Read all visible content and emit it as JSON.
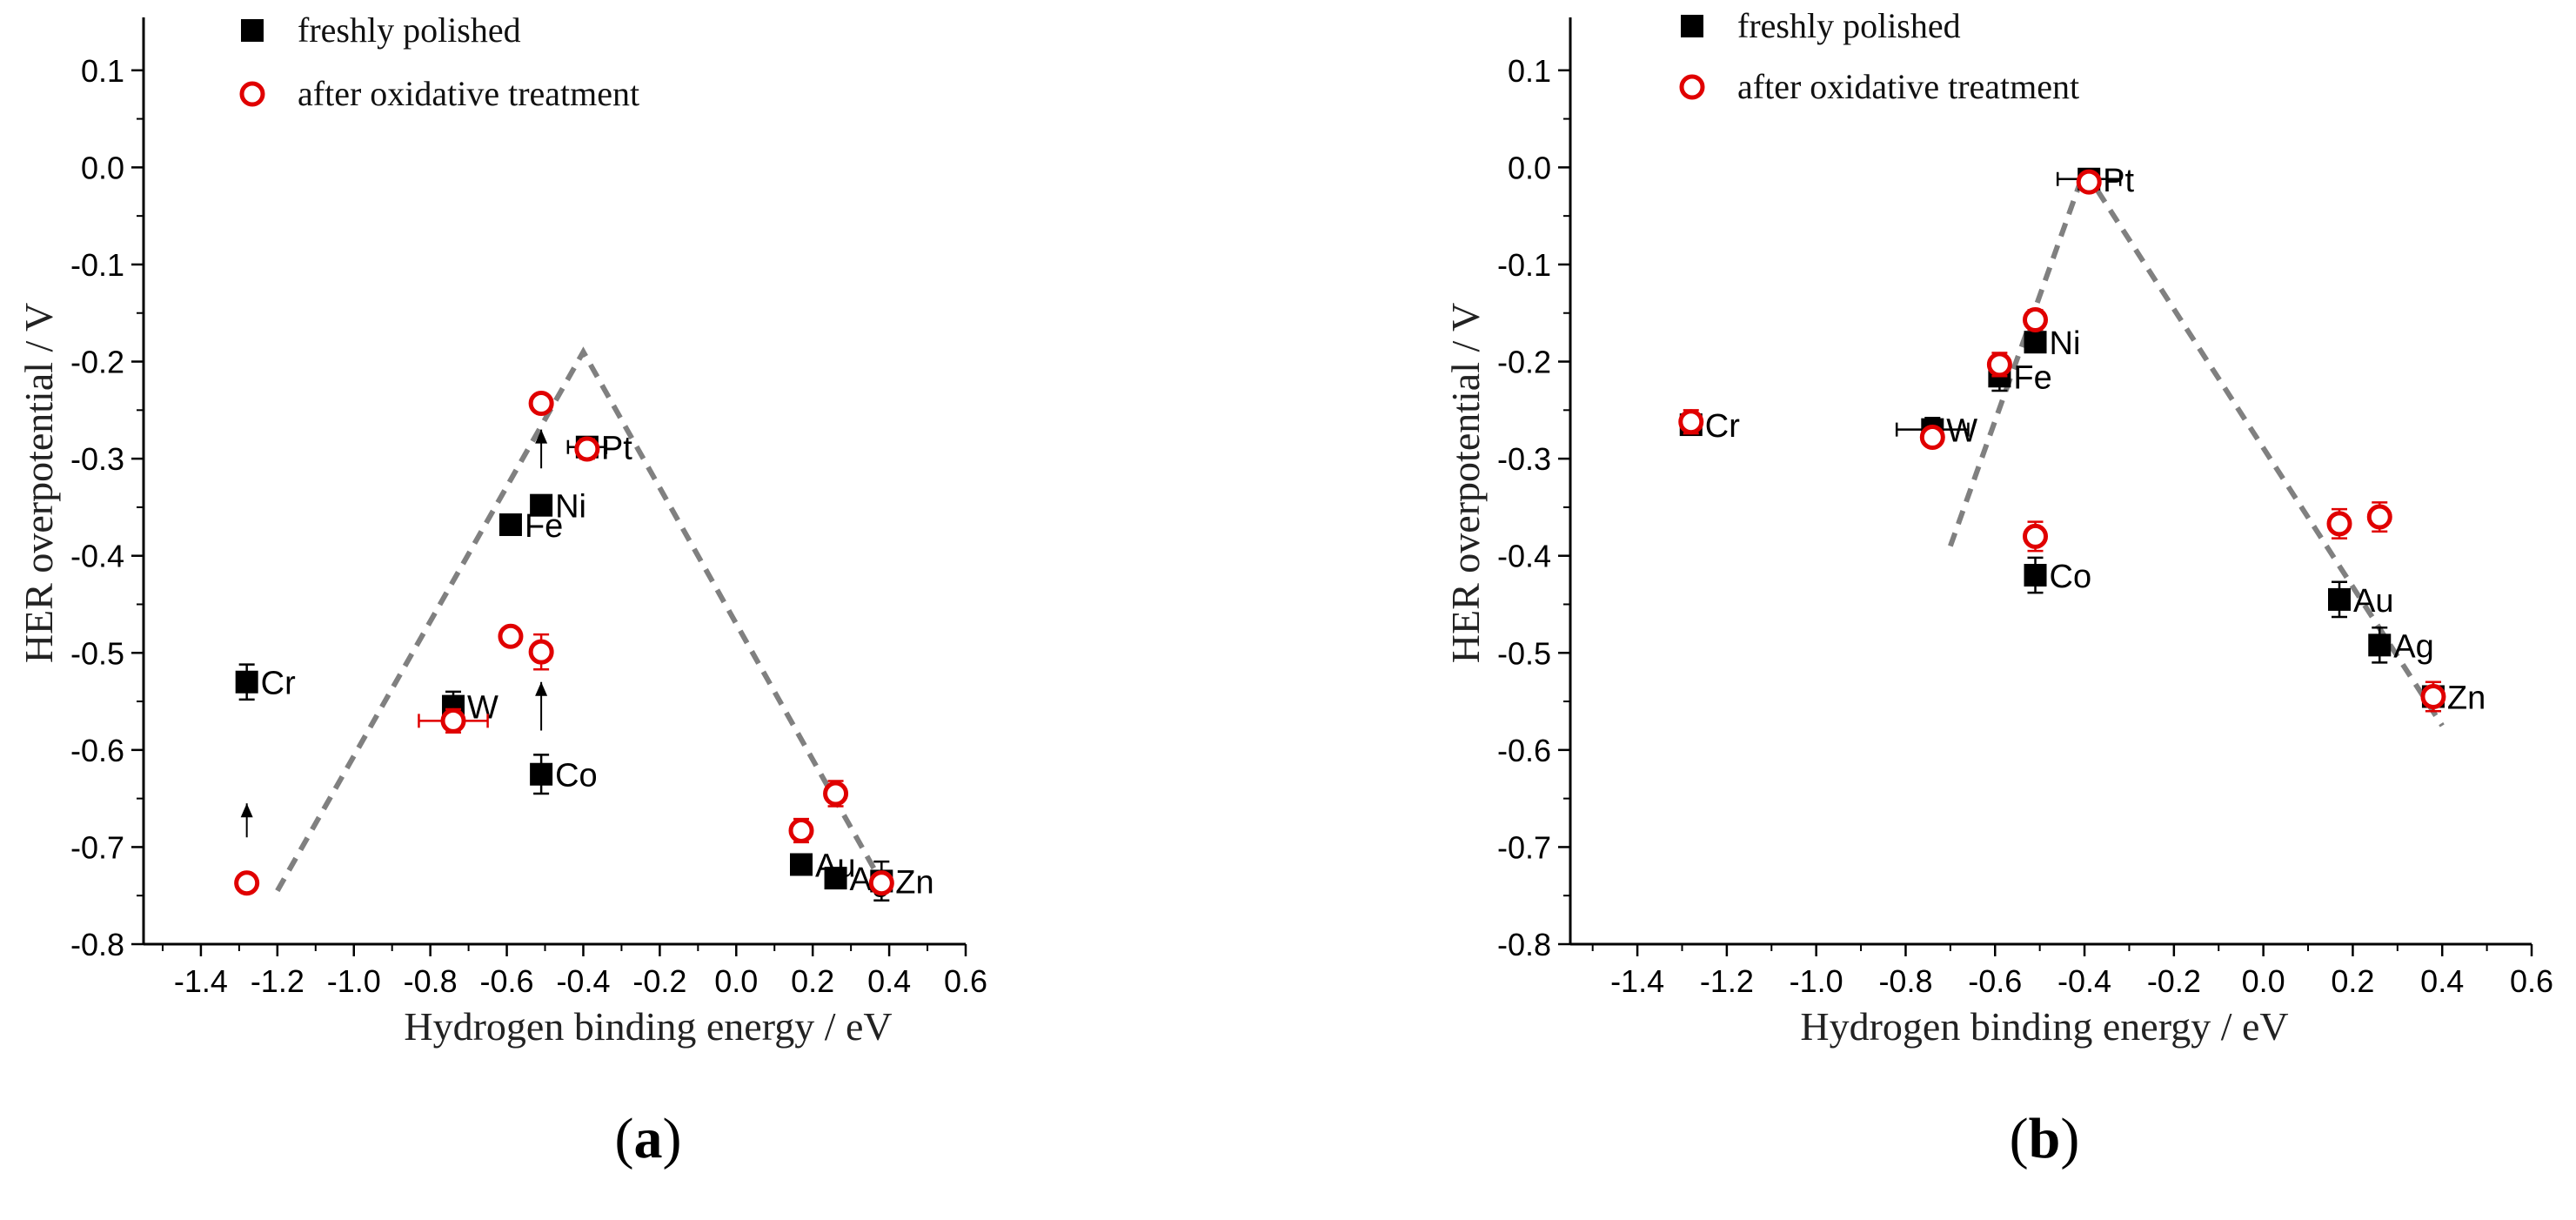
{
  "chart_data": [
    {
      "type": "scatter",
      "panel_label": "(a)",
      "panel_letter": "a",
      "xlabel": "Hydrogen binding energy / eV",
      "ylabel": "HER overpotential / V",
      "xlim": [
        -1.55,
        0.6
      ],
      "ylim": [
        -0.8,
        0.15
      ],
      "xticks": [
        -1.4,
        -1.2,
        -1.0,
        -0.8,
        -0.6,
        -0.4,
        -0.2,
        0.0,
        0.2,
        0.4,
        0.6
      ],
      "xtick_labels": [
        "-1.4",
        "-1.2",
        "-1.0",
        "-0.8",
        "-0.6",
        "-0.4",
        "-0.2",
        "0.0",
        "0.2",
        "0.4",
        "0.6"
      ],
      "yticks": [
        0.1,
        0.0,
        -0.1,
        -0.2,
        -0.3,
        -0.4,
        -0.5,
        -0.6,
        -0.7,
        -0.8
      ],
      "ytick_labels": [
        "0.1",
        "0.0",
        "-0.1",
        "-0.2",
        "-0.3",
        "-0.4",
        "-0.5",
        "-0.6",
        "-0.7",
        "-0.8"
      ],
      "legend": [
        {
          "name": "freshly polished",
          "marker": "filled-square",
          "color": "#000000"
        },
        {
          "name": "after oxidative treatment",
          "marker": "open-circle",
          "color": "#e00000"
        }
      ],
      "series": [
        {
          "name": "freshly polished",
          "points": [
            {
              "metal": "Cr",
              "label": "Cr",
              "x": -1.28,
              "y": -0.53,
              "err": 0.018
            },
            {
              "metal": "W",
              "label": "W",
              "x": -0.74,
              "y": -0.555,
              "err": 0.015
            },
            {
              "metal": "Fe",
              "label": "Fe",
              "x": -0.59,
              "y": -0.368,
              "err": 0
            },
            {
              "metal": "Ni",
              "label": "Ni",
              "x": -0.51,
              "y": -0.348,
              "err": 0
            },
            {
              "metal": "Co",
              "label": "Co",
              "x": -0.51,
              "y": -0.625,
              "err": 0.02
            },
            {
              "metal": "Pt",
              "label": "Pt",
              "x": -0.39,
              "y": -0.288,
              "err": 0.01,
              "xerr": 0.05
            },
            {
              "metal": "Au",
              "label": "Au",
              "x": 0.17,
              "y": -0.718,
              "err": 0
            },
            {
              "metal": "Ag",
              "label": "Ag",
              "x": 0.26,
              "y": -0.732,
              "err": 0
            },
            {
              "metal": "Zn",
              "label": "Zn",
              "x": 0.38,
              "y": -0.735,
              "err": 0.02
            }
          ]
        },
        {
          "name": "after oxidative treatment",
          "points": [
            {
              "metal": "Cr",
              "x": -1.28,
              "y": -0.737,
              "err": 0
            },
            {
              "metal": "W",
              "x": -0.74,
              "y": -0.57,
              "err": 0.012,
              "xerr": 0.09
            },
            {
              "metal": "Fe",
              "x": -0.59,
              "y": -0.483,
              "err": 0
            },
            {
              "metal": "Ni",
              "x": -0.51,
              "y": -0.243,
              "err": 0
            },
            {
              "metal": "Co",
              "x": -0.51,
              "y": -0.499,
              "err": 0.018
            },
            {
              "metal": "Pt",
              "x": -0.39,
              "y": -0.29,
              "err": 0.01
            },
            {
              "metal": "Au",
              "x": 0.17,
              "y": -0.683,
              "err": 0.012
            },
            {
              "metal": "Ag",
              "x": 0.26,
              "y": -0.645,
              "err": 0.013
            },
            {
              "metal": "Zn",
              "x": 0.38,
              "y": -0.737,
              "err": 0
            }
          ]
        }
      ],
      "trend_line": [
        [
          -1.2,
          -0.745
        ],
        [
          -0.4,
          -0.19
        ],
        [
          0.4,
          -0.75
        ]
      ],
      "arrows": [
        {
          "metal": "Cr",
          "from_y": -0.69,
          "to_y": -0.655
        },
        {
          "metal": "Ni",
          "from_y": -0.31,
          "to_y": -0.27
        },
        {
          "metal": "Co",
          "from_y": -0.58,
          "to_y": -0.53
        }
      ]
    },
    {
      "type": "scatter",
      "panel_label": "(b)",
      "panel_letter": "b",
      "xlabel": "Hydrogen binding energy / eV",
      "ylabel": "HER overpotential / V",
      "xlim": [
        -1.55,
        0.6
      ],
      "ylim": [
        -0.8,
        0.15
      ],
      "xticks": [
        -1.4,
        -1.2,
        -1.0,
        -0.8,
        -0.6,
        -0.4,
        -0.2,
        0.0,
        0.2,
        0.4,
        0.6
      ],
      "xtick_labels": [
        "-1.4",
        "-1.2",
        "-1.0",
        "-0.8",
        "-0.6",
        "-0.4",
        "-0.2",
        "0.0",
        "0.2",
        "0.4",
        "0.6"
      ],
      "yticks": [
        0.1,
        0.0,
        -0.1,
        -0.2,
        -0.3,
        -0.4,
        -0.5,
        -0.6,
        -0.7,
        -0.8
      ],
      "ytick_labels": [
        "0.1",
        "0.0",
        "-0.1",
        "-0.2",
        "-0.3",
        "-0.4",
        "-0.5",
        "-0.6",
        "-0.7",
        "-0.8"
      ],
      "legend": [
        {
          "name": "freshly polished",
          "marker": "filled-square",
          "color": "#000000"
        },
        {
          "name": "after oxidative treatment",
          "marker": "open-circle",
          "color": "#e00000"
        }
      ],
      "series": [
        {
          "name": "freshly polished",
          "points": [
            {
              "metal": "Cr",
              "label": "Cr",
              "x": -1.28,
              "y": -0.265,
              "err": 0.01
            },
            {
              "metal": "W",
              "label": "W",
              "x": -0.74,
              "y": -0.27,
              "err": 0.012,
              "xerr": 0.08
            },
            {
              "metal": "Fe",
              "label": "Fe",
              "x": -0.59,
              "y": -0.215,
              "err": 0.015
            },
            {
              "metal": "Ni",
              "label": "Ni",
              "x": -0.51,
              "y": -0.18,
              "err": 0.01
            },
            {
              "metal": "Co",
              "label": "Co",
              "x": -0.51,
              "y": -0.42,
              "err": 0.018
            },
            {
              "metal": "Pt",
              "label": "Pt",
              "x": -0.39,
              "y": -0.012,
              "err": 0.01,
              "xerr": 0.07
            },
            {
              "metal": "Au",
              "label": "Au",
              "x": 0.17,
              "y": -0.445,
              "err": 0.018
            },
            {
              "metal": "Ag",
              "label": "Ag",
              "x": 0.26,
              "y": -0.492,
              "err": 0.018
            },
            {
              "metal": "Zn",
              "label": "Zn",
              "x": 0.38,
              "y": -0.545,
              "err": 0.015
            }
          ]
        },
        {
          "name": "after oxidative treatment",
          "points": [
            {
              "metal": "Cr",
              "x": -1.28,
              "y": -0.262,
              "err": 0.012
            },
            {
              "metal": "W",
              "x": -0.74,
              "y": -0.278,
              "err": 0
            },
            {
              "metal": "Fe",
              "x": -0.59,
              "y": -0.203,
              "err": 0.012
            },
            {
              "metal": "Ni",
              "x": -0.51,
              "y": -0.157,
              "err": 0.01
            },
            {
              "metal": "Co",
              "x": -0.51,
              "y": -0.38,
              "err": 0.015
            },
            {
              "metal": "Pt",
              "x": -0.39,
              "y": -0.015,
              "err": 0
            },
            {
              "metal": "Au",
              "x": 0.17,
              "y": -0.367,
              "err": 0.015
            },
            {
              "metal": "Ag",
              "x": 0.26,
              "y": -0.36,
              "err": 0.015
            },
            {
              "metal": "Zn",
              "x": 0.38,
              "y": -0.545,
              "err": 0.015
            }
          ]
        }
      ],
      "trend_line": [
        [
          -0.7,
          -0.39
        ],
        [
          -0.4,
          -0.003
        ],
        [
          0.4,
          -0.575
        ]
      ],
      "arrows": []
    }
  ]
}
